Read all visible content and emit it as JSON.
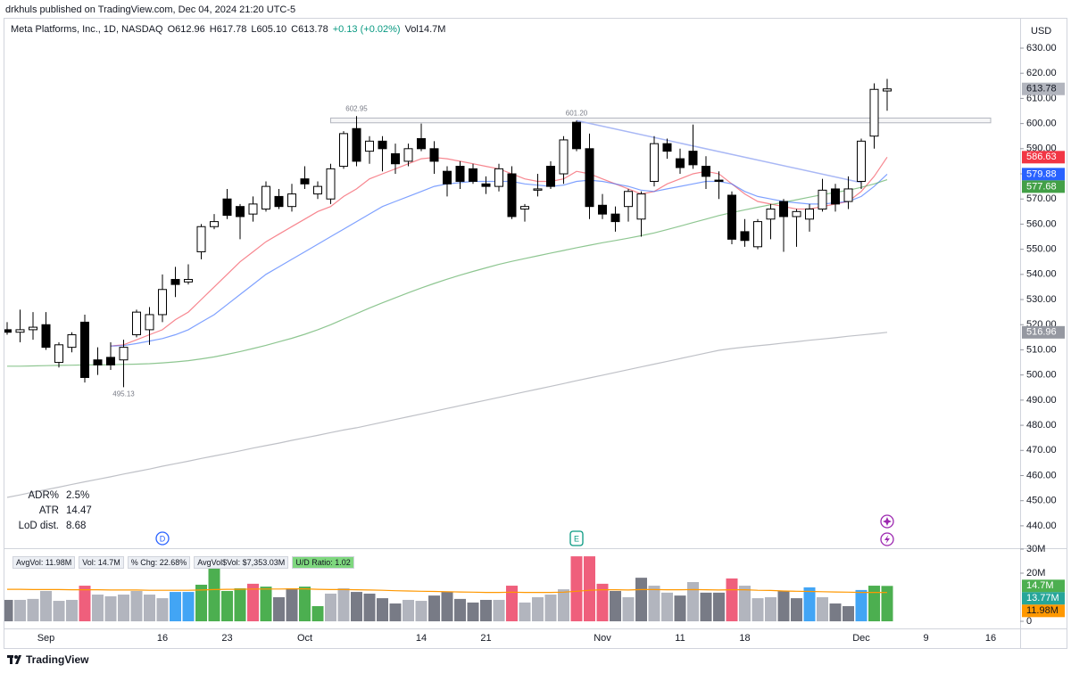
{
  "header": {
    "publisher": "drkhuls published on TradingView.com, Dec 04, 2024 21:20 UTC-5"
  },
  "legend": {
    "symbol": "Meta Platforms, Inc., 1D, NASDAQ",
    "open": "O612.96",
    "high": "H617.78",
    "low": "L605.10",
    "close": "C613.78",
    "change": "+0.13 (+0.02%)",
    "volume": "Vol14.7M"
  },
  "chart_data": {
    "type": "candlestick",
    "currency": "USD",
    "categories": [
      null,
      null,
      null,
      "Sep",
      null,
      null,
      null,
      null,
      null,
      null,
      null,
      null,
      "16",
      null,
      null,
      null,
      null,
      "23",
      null,
      null,
      null,
      null,
      null,
      "Oct",
      null,
      null,
      null,
      null,
      null,
      null,
      null,
      null,
      "14",
      null,
      null,
      null,
      null,
      "21",
      null,
      null,
      null,
      null,
      null,
      null,
      null,
      null,
      "Nov",
      null,
      null,
      null,
      null,
      null,
      "11",
      null,
      null,
      null,
      null,
      "18",
      null,
      null,
      null,
      null,
      null,
      null,
      null,
      null,
      "Dec",
      null,
      null,
      null,
      null,
      "9",
      null,
      null,
      null,
      null,
      "16"
    ],
    "open": [
      518,
      517,
      518,
      520,
      505,
      511,
      521,
      506,
      507,
      506,
      516,
      518,
      524,
      538,
      537,
      549,
      559,
      570,
      567,
      564,
      566,
      571,
      567,
      578,
      572,
      570,
      583,
      598,
      589,
      593,
      588,
      585,
      594,
      590,
      581,
      583,
      582,
      576,
      575,
      580,
      566,
      573.5,
      583,
      580,
      600.5,
      590,
      567.5,
      564,
      567,
      562,
      577,
      592,
      586,
      589,
      583,
      577.5,
      571.5,
      557,
      551,
      562,
      569,
      563,
      562,
      566,
      574,
      569,
      577,
      595,
      612.96,
      null,
      null,
      null,
      null,
      null,
      null,
      null,
      null
    ],
    "high": [
      521,
      526,
      525,
      525,
      513,
      517,
      524,
      511,
      513,
      514,
      526,
      527,
      540,
      543,
      544,
      560,
      564,
      574,
      568,
      571,
      577,
      574,
      576,
      583,
      577,
      584,
      597,
      602.95,
      595,
      595,
      592,
      592,
      600,
      593,
      583,
      585,
      584,
      579,
      584,
      583,
      568,
      580,
      585,
      595,
      601.2,
      596,
      572,
      567,
      574,
      573,
      595,
      594,
      590,
      599.6,
      587,
      581,
      573,
      562,
      562,
      568,
      570,
      566,
      568,
      578,
      576,
      579,
      594,
      616,
      617.78,
      null,
      null,
      null,
      null,
      null,
      null,
      null,
      null
    ],
    "low": [
      516,
      513,
      514,
      510,
      503,
      509,
      497,
      500,
      502,
      495.13,
      515,
      512,
      521,
      531,
      536,
      546,
      558,
      562,
      554,
      561,
      565,
      566,
      565,
      574,
      570,
      568,
      582,
      583,
      584,
      581,
      580,
      583,
      589,
      580,
      571,
      574,
      576,
      572,
      573,
      562,
      561,
      571,
      574,
      576,
      589,
      562,
      562,
      557,
      561,
      555,
      575,
      586,
      580,
      582,
      574,
      570,
      552,
      551,
      550,
      554,
      549,
      551,
      557,
      565,
      565,
      566,
      574,
      590,
      605.1,
      null,
      null,
      null,
      null,
      null,
      null,
      null,
      null
    ],
    "close": [
      517,
      518,
      519,
      511,
      512,
      516,
      499,
      504,
      504,
      511,
      525,
      524,
      534,
      536,
      538,
      559,
      561,
      563.5,
      563,
      568,
      575,
      567,
      572,
      576,
      575,
      582,
      596,
      585,
      593,
      590,
      584,
      590,
      590,
      585,
      576,
      577,
      577,
      575,
      582,
      563,
      567,
      574,
      575,
      593.5,
      590,
      567,
      564,
      561,
      573,
      572,
      592,
      589,
      582.5,
      583.6,
      579,
      577,
      554,
      553.5,
      561,
      566,
      563,
      565,
      566,
      573.5,
      568,
      574,
      593,
      613.6,
      613.78,
      null,
      null,
      null,
      null,
      null,
      null,
      null,
      null
    ],
    "up_color": "#ffffff",
    "down_color": "#000000",
    "last_price_color": "#b2b5be",
    "ylim": [
      431.1,
      642.05
    ],
    "yticks": [
      {
        "value": 440,
        "label": "440.00"
      },
      {
        "value": 450,
        "label": "450.00"
      },
      {
        "value": 460,
        "label": "460.00"
      },
      {
        "value": 470,
        "label": "470.00"
      },
      {
        "value": 480,
        "label": "480.00"
      },
      {
        "value": 490,
        "label": "490.00"
      },
      {
        "value": 500,
        "label": "500.00"
      },
      {
        "value": 510,
        "label": "510.00"
      },
      {
        "value": 520,
        "label": "520.00"
      },
      {
        "value": 530,
        "label": "530.00"
      },
      {
        "value": 540,
        "label": "540.00"
      },
      {
        "value": 550,
        "label": "550.00"
      },
      {
        "value": 560,
        "label": "560.00"
      },
      {
        "value": 570,
        "label": "570.00"
      },
      {
        "value": 580,
        "label": "580.00"
      },
      {
        "value": 590,
        "label": "590.00"
      },
      {
        "value": 600,
        "label": "600.00"
      },
      {
        "value": 610,
        "label": "610.00"
      },
      {
        "value": 620,
        "label": "620.00"
      },
      {
        "value": 630,
        "label": "630.00"
      }
    ],
    "lines": [
      {
        "color": "#f23645",
        "values": [
          null,
          null,
          null,
          null,
          null,
          null,
          null,
          null,
          511.5,
          512,
          514,
          516,
          518,
          522,
          525,
          530,
          535,
          540,
          545,
          549,
          553,
          556,
          559,
          562,
          565,
          567,
          571,
          574,
          578,
          580,
          582,
          584,
          586,
          586.5,
          586,
          585,
          584,
          583,
          582,
          580,
          578,
          577,
          577,
          578,
          581,
          580,
          578,
          576,
          574,
          572,
          573,
          576,
          578,
          580,
          581,
          580,
          576,
          572,
          569,
          568,
          567,
          566,
          566,
          567,
          568,
          569,
          573,
          579,
          586.63,
          null,
          null,
          null,
          null,
          null,
          null,
          null,
          null
        ]
      },
      {
        "color": "#2962ff",
        "values": [
          null,
          null,
          null,
          null,
          null,
          null,
          null,
          null,
          511.5,
          511.7,
          512.5,
          513.5,
          514.5,
          516,
          518,
          521,
          524,
          528,
          532,
          536,
          540,
          543,
          546,
          549,
          552,
          555,
          558,
          561,
          564,
          567,
          569,
          571,
          573,
          575,
          576,
          576.5,
          577,
          577,
          577,
          577,
          576,
          575.5,
          575,
          575.5,
          577,
          577.5,
          577,
          576,
          575,
          573.5,
          573,
          574,
          575,
          576,
          577,
          577,
          576,
          573,
          571,
          570,
          569,
          568.5,
          568,
          568,
          568.5,
          569,
          571,
          575,
          579.88,
          null,
          null,
          null,
          null,
          null,
          null,
          null,
          null
        ]
      },
      {
        "color": "#43a047",
        "values": [
          503.5,
          503.5,
          503.6,
          503.7,
          503.8,
          503.9,
          504,
          504,
          504.1,
          504.2,
          504.3,
          504.5,
          504.8,
          505.2,
          505.7,
          506.4,
          507.2,
          508.2,
          509.3,
          510.5,
          511.8,
          513.2,
          514.6,
          516.2,
          518,
          520,
          522.2,
          524.4,
          526.6,
          528.7,
          530.7,
          532.7,
          534.6,
          536.4,
          538.1,
          539.7,
          541.2,
          542.6,
          544,
          545.2,
          546.3,
          547.4,
          548.5,
          549.5,
          550.6,
          551.6,
          552.6,
          553.5,
          554.4,
          555.4,
          556.5,
          557.8,
          559.2,
          560.6,
          562,
          563.4,
          564.6,
          565.7,
          566.7,
          567.7,
          568.7,
          569.7,
          570.7,
          571.7,
          572.6,
          573.5,
          574.6,
          576,
          577.68,
          null,
          null,
          null,
          null,
          null,
          null,
          null,
          null
        ]
      },
      {
        "color": "#9598a1",
        "values": [
          451.3,
          452.3,
          453.4,
          454.4,
          455.4,
          456.5,
          457.5,
          458.5,
          459.5,
          460.6,
          461.6,
          462.6,
          463.7,
          464.7,
          465.7,
          466.8,
          467.8,
          468.8,
          469.8,
          470.9,
          471.9,
          472.9,
          474,
          475,
          476,
          477.1,
          478.1,
          479,
          480.1,
          481.2,
          482.3,
          483.4,
          484.5,
          485.6,
          486.7,
          487.8,
          488.9,
          490,
          491.1,
          492.2,
          493.3,
          494.4,
          495.5,
          496.6,
          497.7,
          498.8,
          499.9,
          501,
          502.1,
          503.2,
          504.3,
          505.4,
          506.5,
          507.6,
          508.7,
          509.8,
          510.5,
          511.1,
          511.6,
          512.1,
          512.7,
          513.2,
          513.8,
          514.3,
          514.8,
          515.4,
          515.9,
          516.4,
          516.96,
          null,
          null,
          null,
          null,
          null,
          null,
          null,
          null
        ]
      }
    ],
    "zone": {
      "start": 25,
      "from": 600.3,
      "to": 602.2,
      "color": "#b2b5be"
    },
    "trendline": [
      {
        "x": 44,
        "y": 601.2
      },
      {
        "x": 66,
        "y": 576.5
      }
    ],
    "trendline_color": "#a9b8f5",
    "annotations": [
      {
        "x": 27,
        "value": 602.95
      },
      {
        "x": 44,
        "value": 601.2,
        "label": "601.20"
      },
      {
        "x": 9,
        "value": 495.13
      }
    ],
    "events": [
      {
        "x": 12,
        "label": "D",
        "color": "#2962ff"
      },
      {
        "x": 44,
        "label": "E",
        "color": "#089981"
      }
    ],
    "volume": {
      "values": [
        8.9,
        8.9,
        9.3,
        12.6,
        8.5,
        8.9,
        14.8,
        11.1,
        10.4,
        11.1,
        12.6,
        11.1,
        9.6,
        12.2,
        12.2,
        15.2,
        22.2,
        12.6,
        13.7,
        15.6,
        14.4,
        10,
        13.7,
        14.4,
        6.3,
        11.5,
        13.7,
        12.2,
        11.5,
        9.6,
        7.4,
        8.9,
        8.5,
        10.7,
        12.2,
        9.3,
        7.8,
        8.9,
        8.9,
        14.8,
        7.8,
        10,
        11.1,
        13.3,
        27,
        27,
        15.6,
        12.6,
        10,
        18.1,
        14.8,
        11.9,
        10.7,
        16.3,
        11.9,
        11.9,
        17.8,
        14.8,
        9.6,
        10,
        12.6,
        9.6,
        14.1,
        10,
        7.4,
        6.3,
        13,
        14.8,
        14.7,
        null,
        null,
        null,
        null,
        null,
        null,
        null,
        null
      ],
      "colors": [
        "#787b86",
        "#b2b5be",
        "#b2b5be",
        "#b2b5be",
        "#b2b5be",
        "#b2b5be",
        "#ef5f7c",
        "#b2b5be",
        "#b2b5be",
        "#b2b5be",
        "#b2b5be",
        "#b2b5be",
        "#b2b5be",
        "#42a5f5",
        "#42a5f5",
        "#4caf50",
        "#4caf50",
        "#4caf50",
        "#4caf50",
        "#ef5f7c",
        "#4caf50",
        "#787b86",
        "#787b86",
        "#4caf50",
        "#4caf50",
        "#b2b5be",
        "#b2b5be",
        "#787b86",
        "#787b86",
        "#787b86",
        "#787b86",
        "#b2b5be",
        "#b2b5be",
        "#787b86",
        "#787b86",
        "#787b86",
        "#787b86",
        "#787b86",
        "#b2b5be",
        "#ef5f7c",
        "#b2b5be",
        "#b2b5be",
        "#b2b5be",
        "#b2b5be",
        "#ef5f7c",
        "#ef5f7c",
        "#ef5f7c",
        "#787b86",
        "#b2b5be",
        "#787b86",
        "#b2b5be",
        "#b2b5be",
        "#787b86",
        "#b2b5be",
        "#787b86",
        "#787b86",
        "#ef5f7c",
        "#b2b5be",
        "#b2b5be",
        "#b2b5be",
        "#787b86",
        "#787b86",
        "#42a5f5",
        "#b2b5be",
        "#787b86",
        "#787b86",
        "#42a5f5",
        "#4caf50",
        "#4caf50",
        null,
        null,
        null,
        null,
        null,
        null,
        null,
        null
      ],
      "value_labels": [
        null,
        null,
        null,
        null,
        null,
        null,
        null,
        null,
        null,
        null,
        null,
        null,
        null,
        null,
        null,
        null,
        null,
        null,
        null,
        null,
        null,
        null,
        null,
        null,
        null,
        null,
        null,
        null,
        null,
        null,
        null,
        null,
        null,
        null,
        null,
        null,
        null,
        null,
        null,
        null,
        null,
        null,
        null,
        null,
        null,
        null,
        null,
        null,
        null,
        null,
        null,
        null,
        null,
        null,
        null,
        null,
        null,
        null,
        null,
        null,
        null,
        null,
        null,
        null,
        null,
        null,
        null,
        null,
        "14.7M",
        null,
        null,
        null,
        null,
        null,
        null,
        null,
        null
      ],
      "label_color": "#4caf50",
      "ylim": [
        -2.96,
        30.37
      ],
      "yticks": [
        0,
        {
          "value": 20,
          "label": "20M"
        },
        {
          "value": 30,
          "label": "30M"
        }
      ],
      "average": {
        "color": "#ff9800",
        "values": [
          13.3,
          13.3,
          13.2,
          13.2,
          13.2,
          13.1,
          13.1,
          13.1,
          13,
          13,
          13,
          12.9,
          12.9,
          12.9,
          12.9,
          13,
          13.2,
          13.3,
          13.3,
          13.4,
          13.4,
          13.4,
          13.5,
          13.5,
          13.3,
          13.2,
          13.2,
          13.1,
          13,
          12.9,
          12.7,
          12.6,
          12.5,
          12.4,
          12.3,
          12.2,
          12.1,
          12,
          12,
          12.1,
          12,
          12,
          12,
          12.1,
          12.5,
          12.9,
          13.1,
          13.1,
          13,
          13.2,
          13.2,
          13.1,
          13.1,
          13.2,
          13.1,
          13,
          13.1,
          13.1,
          12.9,
          12.8,
          12.6,
          12.5,
          12.4,
          12.3,
          12.2,
          12.1,
          12,
          12,
          11.98,
          null,
          null,
          null,
          null,
          null,
          null,
          null,
          null
        ],
        "value_labels": [
          null,
          null,
          null,
          null,
          null,
          null,
          null,
          null,
          null,
          null,
          null,
          null,
          null,
          null,
          null,
          null,
          null,
          null,
          null,
          null,
          null,
          null,
          null,
          null,
          null,
          null,
          null,
          null,
          null,
          null,
          null,
          null,
          null,
          null,
          null,
          null,
          null,
          null,
          null,
          null,
          null,
          null,
          null,
          null,
          null,
          null,
          null,
          null,
          null,
          null,
          null,
          null,
          null,
          null,
          null,
          null,
          null,
          null,
          null,
          null,
          null,
          null,
          null,
          null,
          null,
          null,
          null,
          null,
          "11.98M",
          null,
          null,
          null,
          null,
          null,
          null,
          null,
          null
        ]
      },
      "extra_labels": [
        {
          "value": 13.77,
          "label": "13.77M",
          "color": "#26a69a"
        }
      ],
      "stats": [
        "AvgVol: 11.98M",
        "Vol: 14.7M",
        "% Chg: 22.68%",
        "AvgVol$Vol: $7,353.03M",
        "U/D Ratio: 1.02"
      ]
    }
  },
  "stats_table": {
    "rows": [
      [
        "ADR%",
        "2.5%"
      ],
      [
        "ATR",
        "14.47"
      ],
      [
        "LoD dist.",
        "8.68"
      ]
    ]
  },
  "footer": {
    "brand": "TradingView"
  }
}
